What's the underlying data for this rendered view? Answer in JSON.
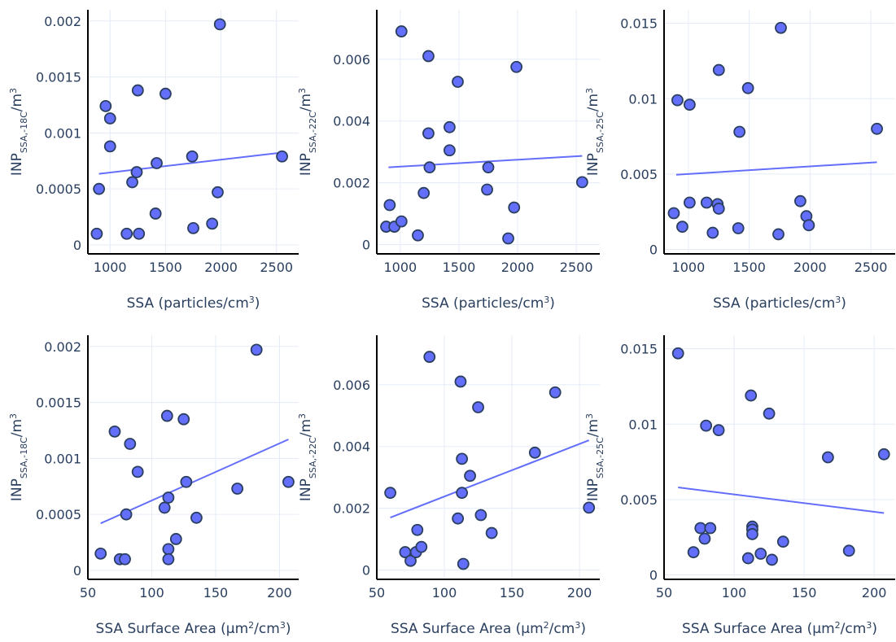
{
  "chart_data": [
    {
      "type": "scatter",
      "xlabel": "SSA (particles/cm3)",
      "ylabel": "INP SSA,-18C /m3",
      "xlim": [
        800,
        2700
      ],
      "ylim": [
        -8e-05,
        0.0021
      ],
      "xticks": [
        {
          "v": 1000,
          "label": "1000"
        },
        {
          "v": 1500,
          "label": "1500"
        },
        {
          "v": 2000,
          "label": "2000"
        },
        {
          "v": 2500,
          "label": "2500"
        }
      ],
      "yticks": [
        {
          "v": 0,
          "label": "0"
        },
        {
          "v": 0.0005,
          "label": "0.0005"
        },
        {
          "v": 0.001,
          "label": "0.001"
        },
        {
          "v": 0.0015,
          "label": "0.0015"
        },
        {
          "v": 0.002,
          "label": "0.002"
        }
      ],
      "points": [
        [
          880,
          0.0001
        ],
        [
          900,
          0.0005
        ],
        [
          960,
          0.00124
        ],
        [
          1000,
          0.00088
        ],
        [
          1000,
          0.00113
        ],
        [
          1150,
          0.0001
        ],
        [
          1200,
          0.00056
        ],
        [
          1240,
          0.00065
        ],
        [
          1250,
          0.00138
        ],
        [
          1260,
          0.0001
        ],
        [
          1410,
          0.00028
        ],
        [
          1420,
          0.00073
        ],
        [
          1500,
          0.00135
        ],
        [
          1740,
          0.00079
        ],
        [
          1750,
          0.00015
        ],
        [
          1920,
          0.00019
        ],
        [
          1970,
          0.00047
        ],
        [
          1990,
          0.00197
        ],
        [
          2550,
          0.00079
        ]
      ],
      "fit": [
        [
          900,
          0.000635
        ],
        [
          2550,
          0.000825
        ]
      ]
    },
    {
      "type": "scatter",
      "xlabel": "SSA (particles/cm3)",
      "ylabel": "INP SSA,-22C /m3",
      "xlim": [
        800,
        2700
      ],
      "ylim": [
        -0.0003,
        0.0076
      ],
      "xticks": [
        {
          "v": 1000,
          "label": "1000"
        },
        {
          "v": 1500,
          "label": "1500"
        },
        {
          "v": 2000,
          "label": "2000"
        },
        {
          "v": 2500,
          "label": "2500"
        }
      ],
      "yticks": [
        {
          "v": 0,
          "label": "0"
        },
        {
          "v": 0.002,
          "label": "0.002"
        },
        {
          "v": 0.004,
          "label": "0.004"
        },
        {
          "v": 0.006,
          "label": "0.006"
        }
      ],
      "points": [
        [
          880,
          0.00058
        ],
        [
          910,
          0.00128
        ],
        [
          950,
          0.00058
        ],
        [
          1010,
          0.00075
        ],
        [
          1010,
          0.0069
        ],
        [
          1150,
          0.0003
        ],
        [
          1200,
          0.00167
        ],
        [
          1240,
          0.0036
        ],
        [
          1240,
          0.0061
        ],
        [
          1250,
          0.0025
        ],
        [
          1420,
          0.00305
        ],
        [
          1420,
          0.0038
        ],
        [
          1490,
          0.00527
        ],
        [
          1740,
          0.00178
        ],
        [
          1750,
          0.0025
        ],
        [
          1920,
          0.0002
        ],
        [
          1970,
          0.0012
        ],
        [
          1990,
          0.00575
        ],
        [
          2550,
          0.00202
        ]
      ],
      "fit": [
        [
          900,
          0.0025
        ],
        [
          2550,
          0.00287
        ]
      ]
    },
    {
      "type": "scatter",
      "xlabel": "SSA (particles/cm3)",
      "ylabel": "INP SSA,-25C /m3",
      "xlim": [
        800,
        2700
      ],
      "ylim": [
        -0.0003,
        0.0159
      ],
      "xticks": [
        {
          "v": 1000,
          "label": "1000"
        },
        {
          "v": 1500,
          "label": "1500"
        },
        {
          "v": 2000,
          "label": "2000"
        },
        {
          "v": 2500,
          "label": "2500"
        }
      ],
      "yticks": [
        {
          "v": 0,
          "label": "0"
        },
        {
          "v": 0.005,
          "label": "0.005"
        },
        {
          "v": 0.01,
          "label": "0.01"
        },
        {
          "v": 0.015,
          "label": "0.015"
        }
      ],
      "points": [
        [
          880,
          0.0024
        ],
        [
          910,
          0.0099
        ],
        [
          950,
          0.0015
        ],
        [
          1010,
          0.0031
        ],
        [
          1010,
          0.0096
        ],
        [
          1150,
          0.0031
        ],
        [
          1200,
          0.0011
        ],
        [
          1240,
          0.003
        ],
        [
          1250,
          0.0119
        ],
        [
          1250,
          0.0027
        ],
        [
          1410,
          0.0014
        ],
        [
          1420,
          0.0078
        ],
        [
          1490,
          0.0107
        ],
        [
          1740,
          0.001
        ],
        [
          1760,
          0.0147
        ],
        [
          1920,
          0.0032
        ],
        [
          1970,
          0.0022
        ],
        [
          1990,
          0.0016
        ],
        [
          2550,
          0.008
        ]
      ],
      "fit": [
        [
          900,
          0.00495
        ],
        [
          2550,
          0.00578
        ]
      ]
    },
    {
      "type": "scatter",
      "xlabel": "SSA Surface Area (µm2/cm3)",
      "ylabel": "INP SSA,-18C /m3",
      "xlim": [
        50,
        215
      ],
      "ylim": [
        -8e-05,
        0.0021
      ],
      "xticks": [
        {
          "v": 50,
          "label": "50"
        },
        {
          "v": 100,
          "label": "100"
        },
        {
          "v": 150,
          "label": "150"
        },
        {
          "v": 200,
          "label": "200"
        }
      ],
      "yticks": [
        {
          "v": 0,
          "label": "0"
        },
        {
          "v": 0.0005,
          "label": "0.0005"
        },
        {
          "v": 0.001,
          "label": "0.001"
        },
        {
          "v": 0.0015,
          "label": "0.0015"
        },
        {
          "v": 0.002,
          "label": "0.002"
        }
      ],
      "points": [
        [
          60,
          0.00015
        ],
        [
          71,
          0.00124
        ],
        [
          75,
          0.0001
        ],
        [
          79,
          0.0001
        ],
        [
          80,
          0.0005
        ],
        [
          83,
          0.00113
        ],
        [
          89,
          0.00088
        ],
        [
          110,
          0.00056
        ],
        [
          112,
          0.00138
        ],
        [
          113,
          0.00065
        ],
        [
          113,
          0.00019
        ],
        [
          113,
          0.0001
        ],
        [
          119,
          0.00028
        ],
        [
          125,
          0.00135
        ],
        [
          127,
          0.00079
        ],
        [
          135,
          0.00047
        ],
        [
          167,
          0.00073
        ],
        [
          182,
          0.00197
        ],
        [
          207,
          0.00079
        ]
      ],
      "fit": [
        [
          60,
          0.00042
        ],
        [
          207,
          0.00117
        ]
      ]
    },
    {
      "type": "scatter",
      "xlabel": "SSA Surface Area (µm2/cm3)",
      "ylabel": "INP SSA,-22C /m3",
      "xlim": [
        50,
        215
      ],
      "ylim": [
        -0.0003,
        0.0076
      ],
      "xticks": [
        {
          "v": 50,
          "label": "50"
        },
        {
          "v": 100,
          "label": "100"
        },
        {
          "v": 150,
          "label": "150"
        },
        {
          "v": 200,
          "label": "200"
        }
      ],
      "yticks": [
        {
          "v": 0,
          "label": "0"
        },
        {
          "v": 0.002,
          "label": "0.002"
        },
        {
          "v": 0.004,
          "label": "0.004"
        },
        {
          "v": 0.006,
          "label": "0.006"
        }
      ],
      "points": [
        [
          60,
          0.0025
        ],
        [
          71,
          0.00058
        ],
        [
          75,
          0.0003
        ],
        [
          79,
          0.00058
        ],
        [
          80,
          0.0013
        ],
        [
          83,
          0.00075
        ],
        [
          89,
          0.0069
        ],
        [
          110,
          0.00167
        ],
        [
          112,
          0.0061
        ],
        [
          113,
          0.0036
        ],
        [
          113,
          0.0025
        ],
        [
          114,
          0.0002
        ],
        [
          119,
          0.00305
        ],
        [
          125,
          0.00527
        ],
        [
          127,
          0.00178
        ],
        [
          135,
          0.0012
        ],
        [
          167,
          0.0038
        ],
        [
          182,
          0.00575
        ],
        [
          207,
          0.00202
        ]
      ],
      "fit": [
        [
          60,
          0.0017
        ],
        [
          207,
          0.0042
        ]
      ]
    },
    {
      "type": "scatter",
      "xlabel": "SSA Surface Area (µm2/cm3)",
      "ylabel": "INP SSA,-25C /m3",
      "xlim": [
        50,
        215
      ],
      "ylim": [
        -0.0003,
        0.0159
      ],
      "xticks": [
        {
          "v": 50,
          "label": "50"
        },
        {
          "v": 100,
          "label": "100"
        },
        {
          "v": 150,
          "label": "150"
        },
        {
          "v": 200,
          "label": "200"
        }
      ],
      "yticks": [
        {
          "v": 0,
          "label": "0"
        },
        {
          "v": 0.005,
          "label": "0.005"
        },
        {
          "v": 0.01,
          "label": "0.01"
        },
        {
          "v": 0.015,
          "label": "0.015"
        }
      ],
      "points": [
        [
          60,
          0.0147
        ],
        [
          71,
          0.0015
        ],
        [
          76,
          0.0031
        ],
        [
          79,
          0.0024
        ],
        [
          80,
          0.0099
        ],
        [
          83,
          0.0031
        ],
        [
          89,
          0.0096
        ],
        [
          110,
          0.0011
        ],
        [
          112,
          0.0119
        ],
        [
          113,
          0.0032
        ],
        [
          113,
          0.003
        ],
        [
          113,
          0.0027
        ],
        [
          119,
          0.0014
        ],
        [
          125,
          0.0107
        ],
        [
          127,
          0.001
        ],
        [
          135,
          0.0022
        ],
        [
          167,
          0.0078
        ],
        [
          182,
          0.0016
        ],
        [
          207,
          0.008
        ]
      ],
      "fit": [
        [
          60,
          0.0058
        ],
        [
          207,
          0.0041
        ]
      ]
    }
  ]
}
